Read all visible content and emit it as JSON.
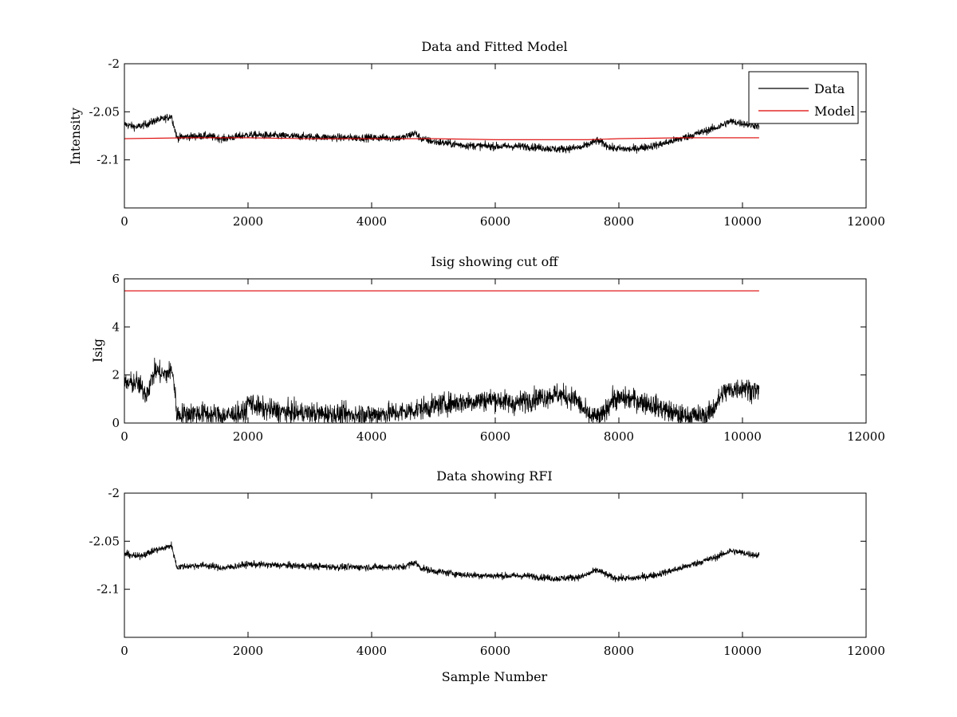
{
  "chart_data": [
    {
      "type": "line",
      "title": "Data and Fitted Model",
      "xlabel": "",
      "ylabel": "Intensity",
      "xlim": [
        0,
        12000
      ],
      "ylim": [
        -2.15,
        -2.0
      ],
      "xticks": [
        0,
        2000,
        4000,
        6000,
        8000,
        10000,
        12000
      ],
      "xtick_labels": [
        "0",
        "2000",
        "4000",
        "6000",
        "8000",
        "10000",
        "12000"
      ],
      "yticks": [
        -2.1,
        -2.05,
        -2.0
      ],
      "ytick_labels": [
        "-2.1",
        "-2.05",
        "-2"
      ],
      "grid": false,
      "legend": {
        "placement": "top-right",
        "entries": [
          "Data",
          "Model"
        ]
      },
      "series": [
        {
          "name": "Data",
          "color": "#000000",
          "noise": 0.004,
          "x": [
            0,
            200,
            400,
            500,
            600,
            700,
            760,
            850,
            1000,
            1300,
            1600,
            2000,
            2500,
            3000,
            3500,
            4000,
            4500,
            4700,
            4800,
            5000,
            5500,
            6000,
            6500,
            7000,
            7400,
            7650,
            7900,
            8200,
            8600,
            9000,
            9400,
            9600,
            9800,
            10000,
            10270
          ],
          "y": [
            -2.063,
            -2.066,
            -2.062,
            -2.059,
            -2.058,
            -2.056,
            -2.054,
            -2.077,
            -2.076,
            -2.075,
            -2.078,
            -2.074,
            -2.075,
            -2.076,
            -2.077,
            -2.077,
            -2.077,
            -2.072,
            -2.078,
            -2.081,
            -2.085,
            -2.086,
            -2.086,
            -2.089,
            -2.087,
            -2.08,
            -2.088,
            -2.089,
            -2.085,
            -2.078,
            -2.07,
            -2.066,
            -2.06,
            -2.062,
            -2.065
          ]
        },
        {
          "name": "Model",
          "color": "#dd0000",
          "x": [
            0,
            1000,
            2000,
            3000,
            4000,
            5000,
            6000,
            7000,
            7500,
            8000,
            9000,
            10270
          ],
          "y": [
            -2.078,
            -2.077,
            -2.077,
            -2.078,
            -2.078,
            -2.078,
            -2.079,
            -2.079,
            -2.079,
            -2.078,
            -2.077,
            -2.077
          ]
        }
      ]
    },
    {
      "type": "line",
      "title": "Isig showing cut off",
      "xlabel": "",
      "ylabel": "Isig",
      "xlim": [
        0,
        12000
      ],
      "ylim": [
        0,
        6
      ],
      "xticks": [
        0,
        2000,
        4000,
        6000,
        8000,
        10000,
        12000
      ],
      "xtick_labels": [
        "0",
        "2000",
        "4000",
        "6000",
        "8000",
        "10000",
        "12000"
      ],
      "yticks": [
        0,
        2,
        4,
        6
      ],
      "ytick_labels": [
        "0",
        "2",
        "4",
        "6"
      ],
      "grid": false,
      "series": [
        {
          "name": "",
          "color": "#000000",
          "noise": 0.45,
          "clip_min": 0,
          "x": [
            0,
            200,
            350,
            500,
            650,
            780,
            850,
            1000,
            1300,
            1600,
            1950,
            2000,
            2200,
            2600,
            3000,
            3500,
            4000,
            4500,
            4800,
            5200,
            5600,
            6000,
            6300,
            6600,
            7000,
            7300,
            7500,
            7700,
            7900,
            8200,
            8500,
            8800,
            9000,
            9400,
            9500,
            9700,
            10000,
            10270
          ],
          "y": [
            1.6,
            1.7,
            1.2,
            2.2,
            2.0,
            2.2,
            0.35,
            0.4,
            0.4,
            0.3,
            0.4,
            0.9,
            0.6,
            0.45,
            0.4,
            0.35,
            0.35,
            0.45,
            0.6,
            0.8,
            0.9,
            1.0,
            0.8,
            1.0,
            1.2,
            1.0,
            0.3,
            0.2,
            1.0,
            1.0,
            0.8,
            0.5,
            0.3,
            0.3,
            0.5,
            1.3,
            1.5,
            1.3
          ]
        },
        {
          "name": "",
          "color": "#dd0000",
          "x": [
            0,
            10270
          ],
          "y": [
            5.5,
            5.5
          ]
        }
      ]
    },
    {
      "type": "line",
      "title": "Data showing RFI",
      "xlabel": "Sample Number",
      "ylabel": "",
      "xlim": [
        0,
        12000
      ],
      "ylim": [
        -2.15,
        -2.0
      ],
      "xticks": [
        0,
        2000,
        4000,
        6000,
        8000,
        10000,
        12000
      ],
      "xtick_labels": [
        "0",
        "2000",
        "4000",
        "6000",
        "8000",
        "10000",
        "12000"
      ],
      "yticks": [
        -2.1,
        -2.05,
        -2.0
      ],
      "ytick_labels": [
        "-2.1",
        "-2.05",
        "-2"
      ],
      "grid": false,
      "series": [
        {
          "name": "",
          "color": "#000000",
          "noise": 0.0035,
          "x": [
            0,
            200,
            400,
            500,
            600,
            700,
            760,
            850,
            1000,
            1300,
            1600,
            2000,
            2500,
            3000,
            3500,
            4000,
            4500,
            4700,
            4800,
            5000,
            5500,
            6000,
            6500,
            7000,
            7400,
            7650,
            7900,
            8200,
            8600,
            9000,
            9400,
            9600,
            9800,
            10000,
            10270
          ],
          "y": [
            -2.063,
            -2.066,
            -2.062,
            -2.059,
            -2.058,
            -2.056,
            -2.054,
            -2.077,
            -2.076,
            -2.075,
            -2.078,
            -2.074,
            -2.075,
            -2.076,
            -2.077,
            -2.077,
            -2.077,
            -2.072,
            -2.078,
            -2.081,
            -2.085,
            -2.086,
            -2.086,
            -2.089,
            -2.087,
            -2.08,
            -2.088,
            -2.089,
            -2.085,
            -2.078,
            -2.07,
            -2.066,
            -2.06,
            -2.062,
            -2.065
          ]
        }
      ]
    }
  ]
}
